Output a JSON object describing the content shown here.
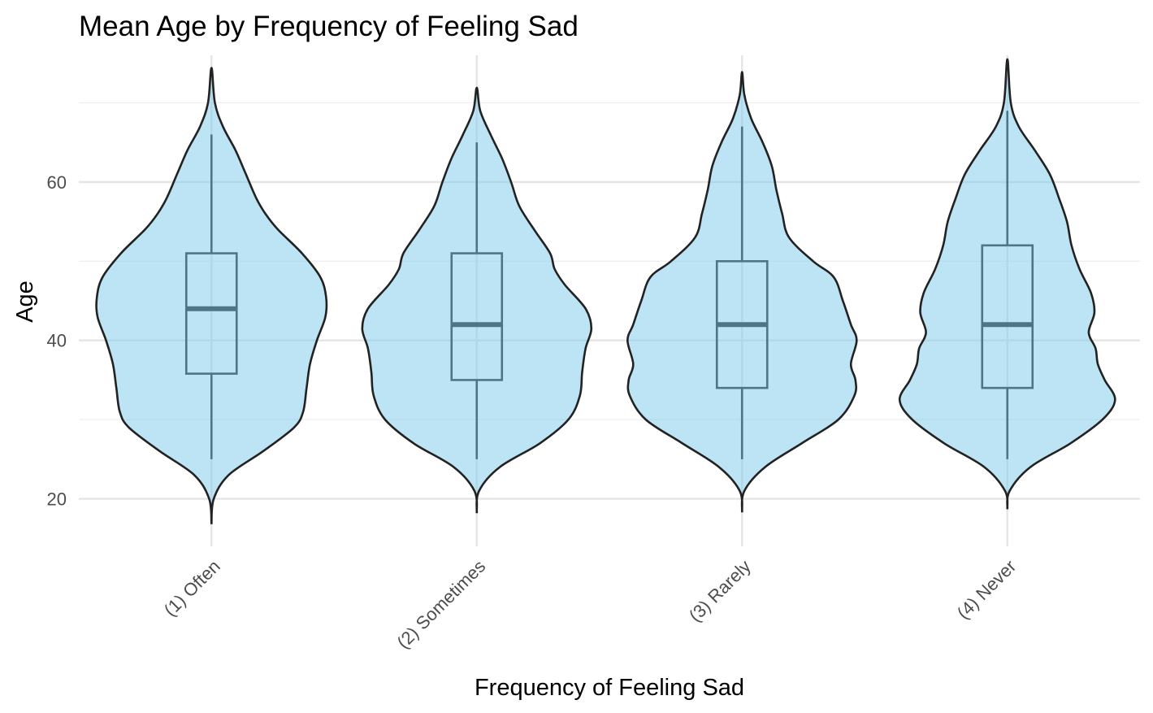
{
  "chart_data": {
    "type": "violin",
    "title": "Mean Age by Frequency of Feeling Sad",
    "xlabel": "Frequency of Feeling Sad",
    "ylabel": "Age",
    "ylim": [
      14,
      76
    ],
    "y_ticks": [
      20,
      40,
      60
    ],
    "grid": true,
    "legend": "none",
    "colors": {
      "fill": "#87CEEB",
      "outline": "#222222",
      "box": "#4f7487"
    },
    "categories": [
      "(1) Often",
      "(2) Sometimes",
      "(3) Rarely",
      "(4) Never"
    ],
    "series": [
      {
        "category": "(1) Often",
        "box": {
          "whisker_low": 25,
          "q1": 35.8,
          "median": 44,
          "q3": 51,
          "whisker_high": 66
        },
        "range": [
          16.8,
          74.4
        ],
        "density_profile": [
          [
            16.8,
            0
          ],
          [
            20,
            0.02
          ],
          [
            23,
            0.15
          ],
          [
            26,
            0.45
          ],
          [
            29,
            0.72
          ],
          [
            31,
            0.8
          ],
          [
            34,
            0.83
          ],
          [
            37,
            0.86
          ],
          [
            40,
            0.92
          ],
          [
            43,
            0.995
          ],
          [
            45.5,
            1.0
          ],
          [
            48,
            0.95
          ],
          [
            51,
            0.79
          ],
          [
            54,
            0.58
          ],
          [
            56,
            0.47
          ],
          [
            58,
            0.39
          ],
          [
            61,
            0.3
          ],
          [
            64,
            0.21
          ],
          [
            67,
            0.1
          ],
          [
            70,
            0.03
          ],
          [
            74.4,
            0
          ]
        ]
      },
      {
        "category": "(2) Sometimes",
        "box": {
          "whisker_low": 25,
          "q1": 35,
          "median": 42,
          "q3": 51,
          "whisker_high": 65
        },
        "range": [
          18.2,
          71.9
        ],
        "density_profile": [
          [
            18.2,
            0
          ],
          [
            21,
            0.02
          ],
          [
            24,
            0.2
          ],
          [
            27,
            0.55
          ],
          [
            30,
            0.8
          ],
          [
            33,
            0.9
          ],
          [
            36,
            0.92
          ],
          [
            39,
            0.95
          ],
          [
            41.5,
            1.0
          ],
          [
            44,
            0.95
          ],
          [
            47,
            0.77
          ],
          [
            49,
            0.68
          ],
          [
            51,
            0.64
          ],
          [
            54,
            0.5
          ],
          [
            57,
            0.37
          ],
          [
            60,
            0.3
          ],
          [
            63,
            0.22
          ],
          [
            66,
            0.12
          ],
          [
            69,
            0.03
          ],
          [
            71.9,
            0
          ]
        ]
      },
      {
        "category": "(3) Rarely",
        "box": {
          "whisker_low": 25,
          "q1": 34,
          "median": 42,
          "q3": 50,
          "whisker_high": 67
        },
        "range": [
          18.3,
          73.9
        ],
        "density_profile": [
          [
            18.3,
            0
          ],
          [
            21,
            0.02
          ],
          [
            24,
            0.2
          ],
          [
            27,
            0.52
          ],
          [
            30,
            0.84
          ],
          [
            33,
            0.98
          ],
          [
            35,
            0.99
          ],
          [
            37,
            0.95
          ],
          [
            40,
            1.0
          ],
          [
            42,
            0.95
          ],
          [
            45,
            0.88
          ],
          [
            48,
            0.8
          ],
          [
            50,
            0.62
          ],
          [
            53,
            0.41
          ],
          [
            56,
            0.35
          ],
          [
            59,
            0.3
          ],
          [
            62,
            0.26
          ],
          [
            65,
            0.18
          ],
          [
            68,
            0.08
          ],
          [
            71,
            0.02
          ],
          [
            73.9,
            0
          ]
        ]
      },
      {
        "category": "(4) Never",
        "box": {
          "whisker_low": 25,
          "q1": 34,
          "median": 42,
          "q3": 52,
          "whisker_high": 69
        },
        "range": [
          18.7,
          75.5
        ],
        "density_profile": [
          [
            18.7,
            0
          ],
          [
            21,
            0.02
          ],
          [
            24,
            0.2
          ],
          [
            27,
            0.55
          ],
          [
            30,
            0.83
          ],
          [
            32.5,
            0.94
          ],
          [
            35,
            0.85
          ],
          [
            37,
            0.79
          ],
          [
            39,
            0.77
          ],
          [
            41,
            0.71
          ],
          [
            43.5,
            0.76
          ],
          [
            46,
            0.73
          ],
          [
            49,
            0.63
          ],
          [
            52,
            0.56
          ],
          [
            55,
            0.52
          ],
          [
            58,
            0.45
          ],
          [
            61,
            0.37
          ],
          [
            64,
            0.24
          ],
          [
            67,
            0.1
          ],
          [
            70,
            0.03
          ],
          [
            75.5,
            0
          ]
        ]
      }
    ]
  }
}
